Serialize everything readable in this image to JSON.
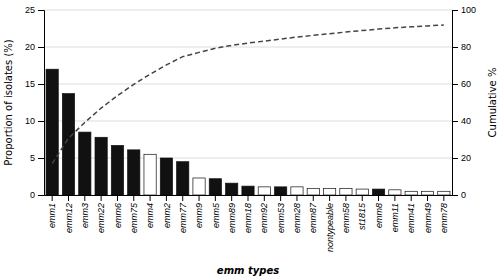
{
  "chart_data": {
    "type": "bar",
    "xlabel": "emm types",
    "ylabel": "Proportion of isolates (%)",
    "y2label": "Cumulative %",
    "categories": [
      "emm1",
      "emm12",
      "emm3",
      "emm22",
      "emm6",
      "emm75",
      "emm4",
      "emm2",
      "emm77",
      "emm9",
      "emm5",
      "emm89",
      "emm18",
      "emm92",
      "emm53",
      "emm28",
      "emm87",
      "nontypeable",
      "emm58",
      "st1815",
      "emm8",
      "emm11",
      "emm41",
      "emm49",
      "emm78"
    ],
    "series": [
      {
        "type": "bar",
        "values": [
          17.0,
          13.7,
          8.5,
          7.8,
          6.7,
          6.1,
          5.5,
          5.0,
          4.5,
          2.3,
          2.2,
          1.6,
          1.2,
          1.1,
          1.1,
          1.1,
          0.9,
          0.9,
          0.9,
          0.8,
          0.8,
          0.7,
          0.5,
          0.5,
          0.5
        ],
        "colors": [
          "#111111",
          "#111111",
          "#111111",
          "#111111",
          "#111111",
          "#111111",
          "#ffffff",
          "#111111",
          "#111111",
          "#ffffff",
          "#111111",
          "#111111",
          "#111111",
          "#ffffff",
          "#111111",
          "#ffffff",
          "#ffffff",
          "#ffffff",
          "#ffffff",
          "#ffffff",
          "#111111",
          "#ffffff",
          "#ffffff",
          "#ffffff",
          "#ffffff"
        ]
      },
      {
        "type": "line",
        "axis": "y2",
        "color": "#444444",
        "line_style": "dashed",
        "values": [
          17.0,
          30.7,
          39.2,
          47.0,
          53.7,
          59.8,
          65.3,
          70.3,
          74.8,
          77.1,
          79.3,
          80.9,
          82.1,
          83.2,
          84.3,
          85.4,
          86.3,
          87.2,
          88.1,
          88.9,
          89.7,
          90.4,
          90.9,
          91.4,
          91.9
        ]
      }
    ],
    "ylim": [
      0,
      25
    ],
    "yticks": [
      0,
      5,
      10,
      15,
      20,
      25
    ],
    "y2lim": [
      0,
      100
    ],
    "y2ticks": [
      0,
      20,
      40,
      60,
      80,
      100
    ],
    "grid": true
  }
}
